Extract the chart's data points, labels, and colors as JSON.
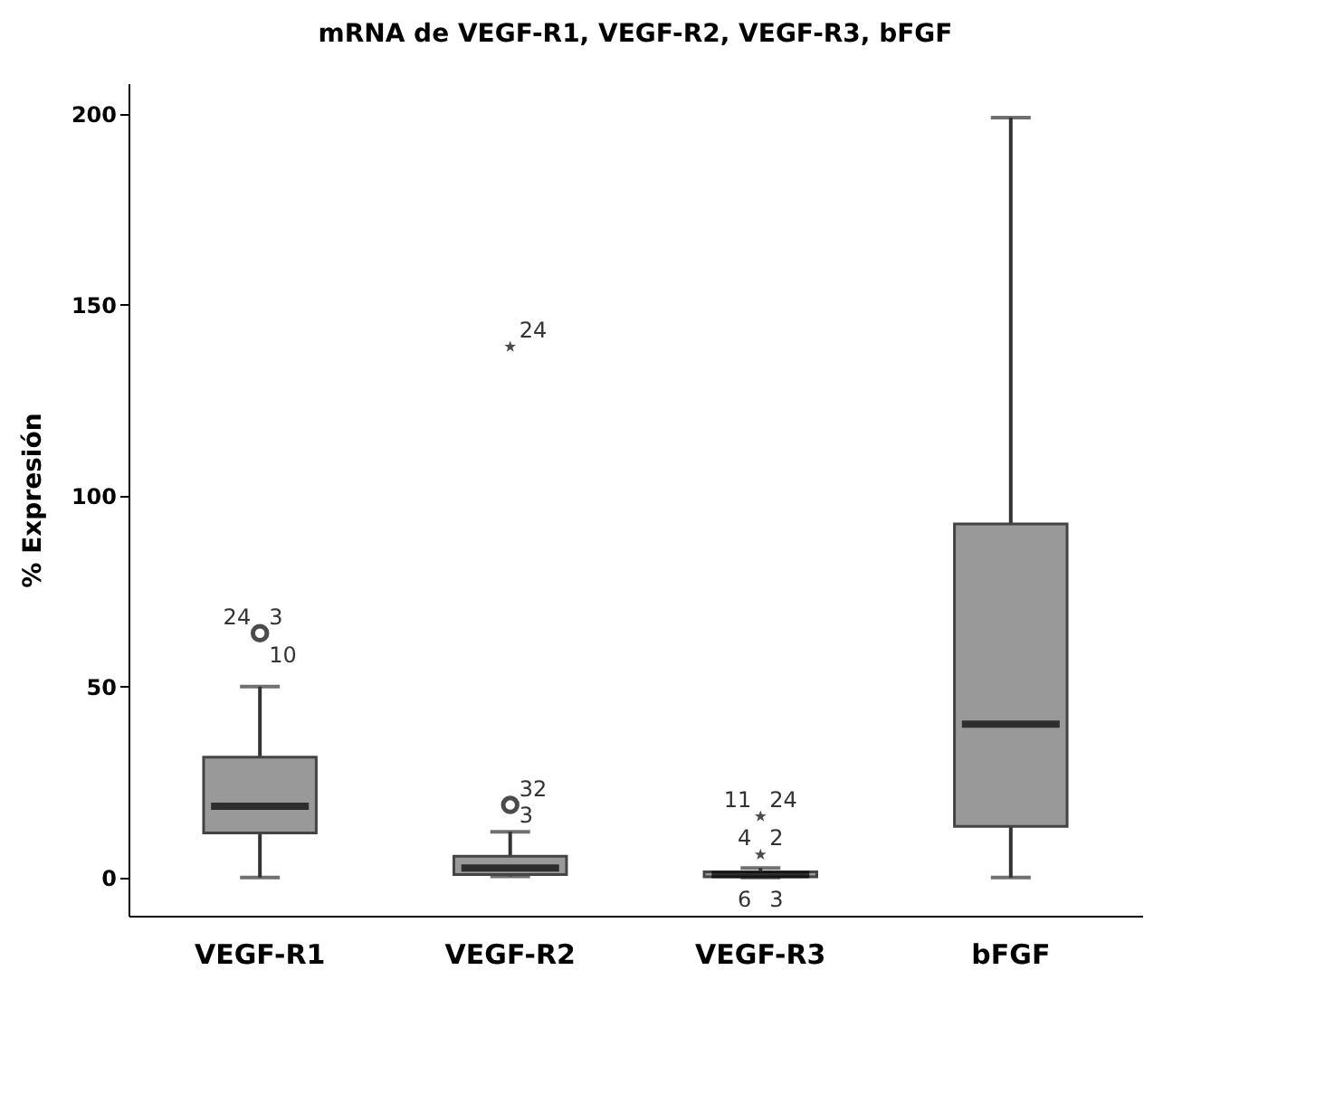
{
  "chart_data": {
    "type": "box",
    "title": "mRNA  de VEGF-R1, VEGF-R2, VEGF-R3, bFGF",
    "ylabel": "% Expresión",
    "categories": [
      "VEGF-R1",
      "VEGF-R2",
      "VEGF-R3",
      "bFGF"
    ],
    "boxes": [
      {
        "low": 0,
        "q1": 11.7,
        "median": 18.7,
        "q3": 31.5,
        "high": 50
      },
      {
        "low": 0.3,
        "q1": 0.8,
        "median": 2.5,
        "q3": 5.6,
        "high": 12
      },
      {
        "low": 0,
        "q1": 0.2,
        "median": 0.8,
        "q3": 1.5,
        "high": 2.5
      },
      {
        "low": 0,
        "q1": 13.4,
        "median": 40.2,
        "q3": 92.6,
        "high": 199
      }
    ],
    "color": "#999999",
    "series": [
      {
        "type": "scatter",
        "marker": "circle",
        "color": "#000000",
        "x": [
          "VEGF-R1",
          "VEGF-R2"
        ],
        "values": [
          64,
          19
        ]
      },
      {
        "type": "scatter",
        "marker": "star",
        "color": "#000000",
        "x": [
          "VEGF-R2",
          "VEGF-R3",
          "VEGF-R3"
        ],
        "values": [
          139,
          16,
          6
        ]
      }
    ],
    "ylim": [
      -10,
      208
    ],
    "yticks": [
      0,
      50,
      100,
      150,
      200
    ],
    "grid": false,
    "annotations": [
      {
        "text": "24",
        "x": "VEGF-R1",
        "y": 64
      },
      {
        "text": "3",
        "x": "VEGF-R1",
        "y": 64
      },
      {
        "text": "10",
        "x": "VEGF-R1",
        "y": 64
      },
      {
        "text": "24",
        "x": "VEGF-R2",
        "y": 139
      },
      {
        "text": "32",
        "x": "VEGF-R2",
        "y": 19
      },
      {
        "text": "3",
        "x": "VEGF-R2",
        "y": 12
      },
      {
        "text": "11",
        "x": "VEGF-R3",
        "y": 16
      },
      {
        "text": "24",
        "x": "VEGF-R3",
        "y": 16
      },
      {
        "text": "4",
        "x": "VEGF-R3",
        "y": 6
      },
      {
        "text": "2",
        "x": "VEGF-R3",
        "y": 6
      },
      {
        "text": "6",
        "x": "VEGF-R3",
        "y": 0
      },
      {
        "text": "3",
        "x": "VEGF-R3",
        "y": 0
      }
    ]
  }
}
